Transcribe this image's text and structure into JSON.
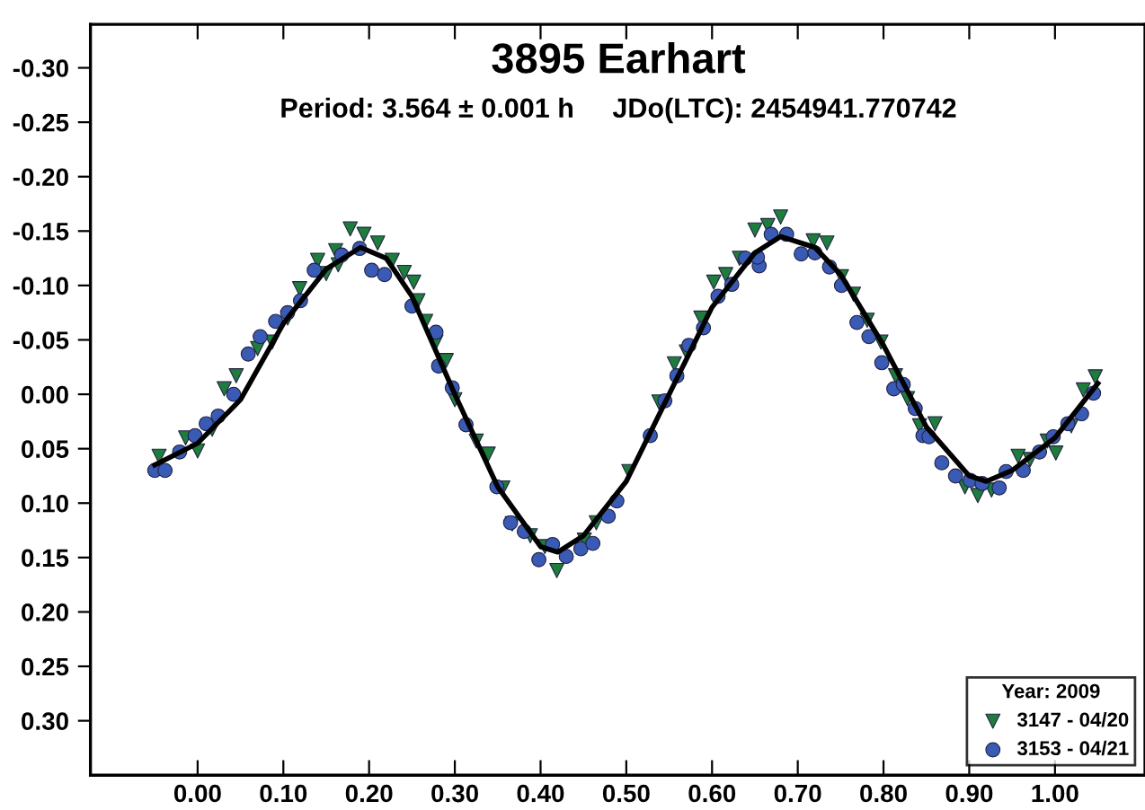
{
  "chart_data": {
    "type": "scatter",
    "title": "3895 Earhart",
    "subtitle": "Period: 3.564 ± 0.001 h     JDo(LTC): 2454941.770742",
    "xlim": [
      -0.125,
      1.105
    ],
    "ylim": [
      0.35,
      -0.34
    ],
    "xticks": [
      {
        "value": 0,
        "label": "0.00"
      },
      {
        "value": 0.1,
        "label": "0.10"
      },
      {
        "value": 0.2,
        "label": "0.20"
      },
      {
        "value": 0.3,
        "label": "0.30"
      },
      {
        "value": 0.4,
        "label": "0.40"
      },
      {
        "value": 0.5,
        "label": "0.50"
      },
      {
        "value": 0.6,
        "label": "0.60"
      },
      {
        "value": 0.7,
        "label": "0.70"
      },
      {
        "value": 0.8,
        "label": "0.80"
      },
      {
        "value": 0.9,
        "label": "0.90"
      },
      {
        "value": 1.0,
        "label": "1.00"
      }
    ],
    "yticks": [
      {
        "value": -0.3,
        "label": "-0.30"
      },
      {
        "value": -0.25,
        "label": "-0.25"
      },
      {
        "value": -0.2,
        "label": "-0.20"
      },
      {
        "value": -0.15,
        "label": "-0.15"
      },
      {
        "value": -0.1,
        "label": "-0.10"
      },
      {
        "value": -0.05,
        "label": "-0.05"
      },
      {
        "value": 0,
        "label": "0.00"
      },
      {
        "value": 0.05,
        "label": "0.05"
      },
      {
        "value": 0.1,
        "label": "0.10"
      },
      {
        "value": 0.15,
        "label": "0.15"
      },
      {
        "value": 0.2,
        "label": "0.20"
      },
      {
        "value": 0.25,
        "label": "0.25"
      },
      {
        "value": 0.3,
        "label": "0.30"
      }
    ],
    "grid": false,
    "legend": "bottom right",
    "legend_title": "Year: 2009",
    "series": [
      {
        "type": "line",
        "color": "#000000",
        "marker": "none",
        "line_style": "solid",
        "x": [
          -0.05,
          0.0,
          0.05,
          0.1,
          0.15,
          0.19,
          0.22,
          0.25,
          0.3,
          0.35,
          0.4,
          0.42,
          0.45,
          0.5,
          0.55,
          0.6,
          0.65,
          0.68,
          0.72,
          0.75,
          0.8,
          0.85,
          0.9,
          0.92,
          0.95,
          1.0,
          1.05
        ],
        "values": [
          0.065,
          0.045,
          0.005,
          -0.065,
          -0.115,
          -0.135,
          -0.125,
          -0.09,
          0.0,
          0.085,
          0.14,
          0.145,
          0.13,
          0.08,
          0.0,
          -0.08,
          -0.13,
          -0.145,
          -0.135,
          -0.11,
          -0.045,
          0.03,
          0.075,
          0.08,
          0.07,
          0.04,
          -0.01
        ]
      },
      {
        "name": "3147 - 04/20",
        "color": "#1e7d3c",
        "marker": "triangle",
        "x": [
          -0.045,
          -0.014,
          0.0,
          0.017,
          0.031,
          0.045,
          0.07,
          0.087,
          0.105,
          0.119,
          0.14,
          0.15,
          0.161,
          0.164,
          0.178,
          0.194,
          0.21,
          0.227,
          0.241,
          0.252,
          0.257,
          0.266,
          0.278,
          0.29,
          0.3,
          0.325,
          0.339,
          0.356,
          0.367,
          0.388,
          0.405,
          0.419,
          0.451,
          0.465,
          0.503,
          0.538,
          0.556,
          0.57,
          0.587,
          0.602,
          0.616,
          0.632,
          0.65,
          0.665,
          0.68,
          0.718,
          0.734,
          0.751,
          0.765,
          0.781,
          0.797,
          0.814,
          0.828,
          0.842,
          0.86,
          0.895,
          0.91,
          0.926,
          0.957,
          0.971,
          0.991,
          1.001,
          1.019,
          1.033,
          1.047
        ],
        "values": [
          0.057,
          0.04,
          0.052,
          0.032,
          -0.005,
          -0.017,
          -0.042,
          -0.048,
          -0.07,
          -0.097,
          -0.123,
          -0.111,
          -0.132,
          -0.119,
          -0.152,
          -0.147,
          -0.139,
          -0.123,
          -0.112,
          -0.103,
          -0.086,
          -0.067,
          -0.048,
          -0.031,
          0.005,
          0.043,
          0.055,
          0.086,
          0.119,
          0.13,
          0.14,
          0.162,
          0.134,
          0.118,
          0.071,
          0.007,
          -0.028,
          -0.039,
          -0.07,
          -0.103,
          -0.11,
          -0.125,
          -0.151,
          -0.155,
          -0.163,
          -0.141,
          -0.139,
          -0.108,
          -0.092,
          -0.068,
          -0.048,
          -0.017,
          0.004,
          0.029,
          0.027,
          0.085,
          0.093,
          0.088,
          0.057,
          0.06,
          0.043,
          0.054,
          0.029,
          -0.004,
          -0.016
        ]
      },
      {
        "name": "3153 - 04/21",
        "color": "#3a5bb5",
        "marker": "circle",
        "x": [
          -0.05,
          -0.038,
          -0.021,
          -0.003,
          0.01,
          0.024,
          0.042,
          0.059,
          0.073,
          0.091,
          0.105,
          0.12,
          0.136,
          0.168,
          0.189,
          0.203,
          0.218,
          0.25,
          0.278,
          0.281,
          0.297,
          0.313,
          0.349,
          0.365,
          0.381,
          0.398,
          0.414,
          0.43,
          0.447,
          0.461,
          0.479,
          0.489,
          0.528,
          0.545,
          0.559,
          0.573,
          0.59,
          0.607,
          0.623,
          0.639,
          0.655,
          0.653,
          0.669,
          0.687,
          0.704,
          0.72,
          0.737,
          0.751,
          0.769,
          0.783,
          0.798,
          0.812,
          0.823,
          0.837,
          0.846,
          0.853,
          0.868,
          0.884,
          0.901,
          0.915,
          0.935,
          0.943,
          0.963,
          0.982,
          0.998,
          1.015,
          1.031,
          1.045
        ],
        "values": [
          0.07,
          0.07,
          0.053,
          0.038,
          0.027,
          0.02,
          0.0,
          -0.037,
          -0.053,
          -0.067,
          -0.075,
          -0.086,
          -0.114,
          -0.128,
          -0.134,
          -0.114,
          -0.11,
          -0.081,
          -0.057,
          -0.026,
          -0.006,
          0.028,
          0.085,
          0.118,
          0.126,
          0.152,
          0.138,
          0.149,
          0.142,
          0.137,
          0.112,
          0.098,
          0.038,
          0.006,
          -0.017,
          -0.045,
          -0.061,
          -0.09,
          -0.101,
          -0.125,
          -0.118,
          -0.126,
          -0.147,
          -0.147,
          -0.129,
          -0.13,
          -0.117,
          -0.1,
          -0.066,
          -0.053,
          -0.029,
          -0.005,
          -0.009,
          0.013,
          0.038,
          0.039,
          0.063,
          0.075,
          0.079,
          0.082,
          0.086,
          0.071,
          0.07,
          0.053,
          0.039,
          0.027,
          0.018,
          -0.001
        ]
      }
    ]
  }
}
